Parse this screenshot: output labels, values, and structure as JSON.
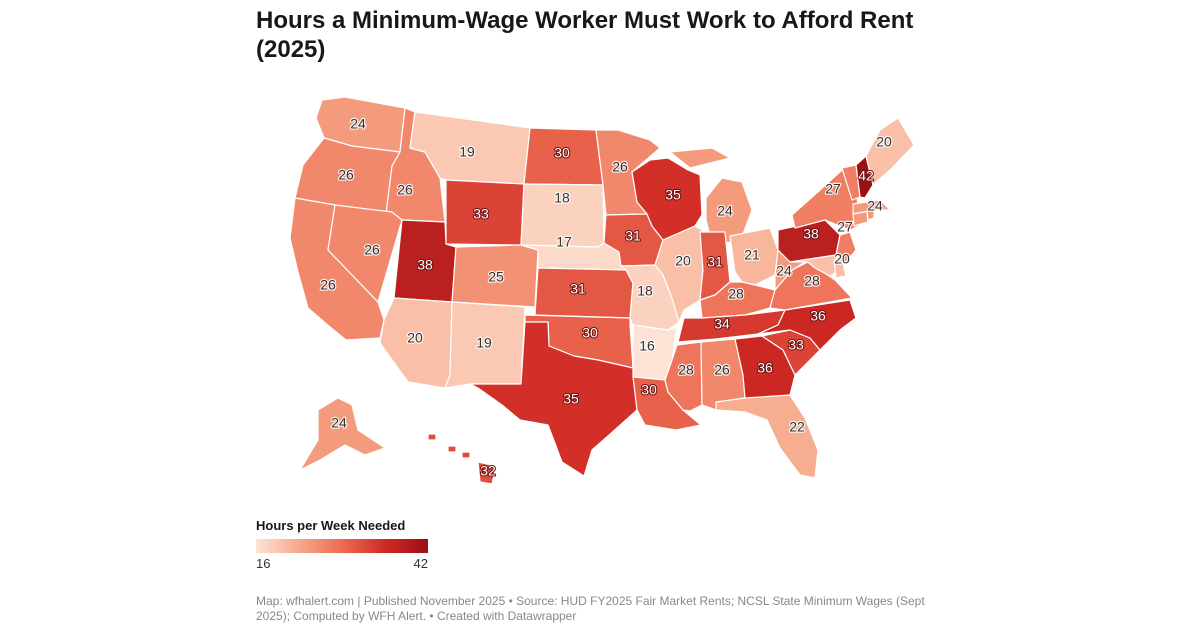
{
  "title": "Hours a Minimum-Wage Worker Must Work to Afford Rent (2025)",
  "legend": {
    "title": "Hours per Week Needed",
    "min_label": "16",
    "max_label": "42",
    "min_value": 16,
    "max_value": 42,
    "colors": [
      "#fde3d6",
      "#f7a88a",
      "#ec6c52",
      "#cf2a25",
      "#9b0f17"
    ]
  },
  "footer": "Map: wfhalert.com | Published November 2025 • Source: HUD FY2025 Fair Market Rents; NCSL State Minimum Wages (Sept 2025); Computed by WFH Alert. • Created with Datawrapper",
  "states": [
    {
      "code": "WA",
      "value": 24,
      "label": "24"
    },
    {
      "code": "OR",
      "value": 26,
      "label": "26"
    },
    {
      "code": "CA",
      "value": 26,
      "label": "26"
    },
    {
      "code": "ID",
      "value": 26,
      "label": "26"
    },
    {
      "code": "NV",
      "value": 26,
      "label": "26"
    },
    {
      "code": "MT",
      "value": 19,
      "label": "19"
    },
    {
      "code": "WY",
      "value": 33,
      "label": "33"
    },
    {
      "code": "UT",
      "value": 38,
      "label": "38"
    },
    {
      "code": "AZ",
      "value": 20,
      "label": "20"
    },
    {
      "code": "CO",
      "value": 25,
      "label": "25"
    },
    {
      "code": "NM",
      "value": 19,
      "label": "19"
    },
    {
      "code": "ND",
      "value": 30,
      "label": "30"
    },
    {
      "code": "SD",
      "value": 18,
      "label": "18"
    },
    {
      "code": "NE",
      "value": 17,
      "label": "17"
    },
    {
      "code": "KS",
      "value": 31,
      "label": "31"
    },
    {
      "code": "OK",
      "value": 30,
      "label": "30"
    },
    {
      "code": "TX",
      "value": 35,
      "label": "35"
    },
    {
      "code": "MN",
      "value": 26,
      "label": "26"
    },
    {
      "code": "IA",
      "value": 31,
      "label": "31"
    },
    {
      "code": "MO",
      "value": 18,
      "label": "18"
    },
    {
      "code": "AR",
      "value": 16,
      "label": "16"
    },
    {
      "code": "LA",
      "value": 30,
      "label": "30"
    },
    {
      "code": "WI",
      "value": 35,
      "label": "35"
    },
    {
      "code": "IL",
      "value": 20,
      "label": "20"
    },
    {
      "code": "MI",
      "value": 24,
      "label": "24"
    },
    {
      "code": "IN",
      "value": 31,
      "label": "31"
    },
    {
      "code": "OH",
      "value": 21,
      "label": "21"
    },
    {
      "code": "KY",
      "value": 28,
      "label": "28"
    },
    {
      "code": "TN",
      "value": 34,
      "label": "34"
    },
    {
      "code": "MS",
      "value": 28,
      "label": "28"
    },
    {
      "code": "AL",
      "value": 26,
      "label": "26"
    },
    {
      "code": "GA",
      "value": 36,
      "label": "36"
    },
    {
      "code": "FL",
      "value": 22,
      "label": "22"
    },
    {
      "code": "SC",
      "value": 33,
      "label": "33"
    },
    {
      "code": "NC",
      "value": 36,
      "label": "36"
    },
    {
      "code": "VA",
      "value": 28,
      "label": "28"
    },
    {
      "code": "WV",
      "value": 24,
      "label": "24"
    },
    {
      "code": "PA",
      "value": 38,
      "label": "38"
    },
    {
      "code": "NY",
      "value": 27,
      "label": "27"
    },
    {
      "code": "NJ",
      "value": 27,
      "label": "27"
    },
    {
      "code": "MD",
      "value": 20,
      "label": "20"
    },
    {
      "code": "DE",
      "value": 20,
      "label": ""
    },
    {
      "code": "CT",
      "value": 24,
      "label": ""
    },
    {
      "code": "RI",
      "value": 24,
      "label": ""
    },
    {
      "code": "MA",
      "value": 24,
      "label": "24"
    },
    {
      "code": "VT",
      "value": 27,
      "label": ""
    },
    {
      "code": "NH",
      "value": 42,
      "label": "42"
    },
    {
      "code": "ME",
      "value": 20,
      "label": "20"
    },
    {
      "code": "AK",
      "value": 24,
      "label": "24"
    },
    {
      "code": "HI",
      "value": 32,
      "label": "32"
    }
  ]
}
